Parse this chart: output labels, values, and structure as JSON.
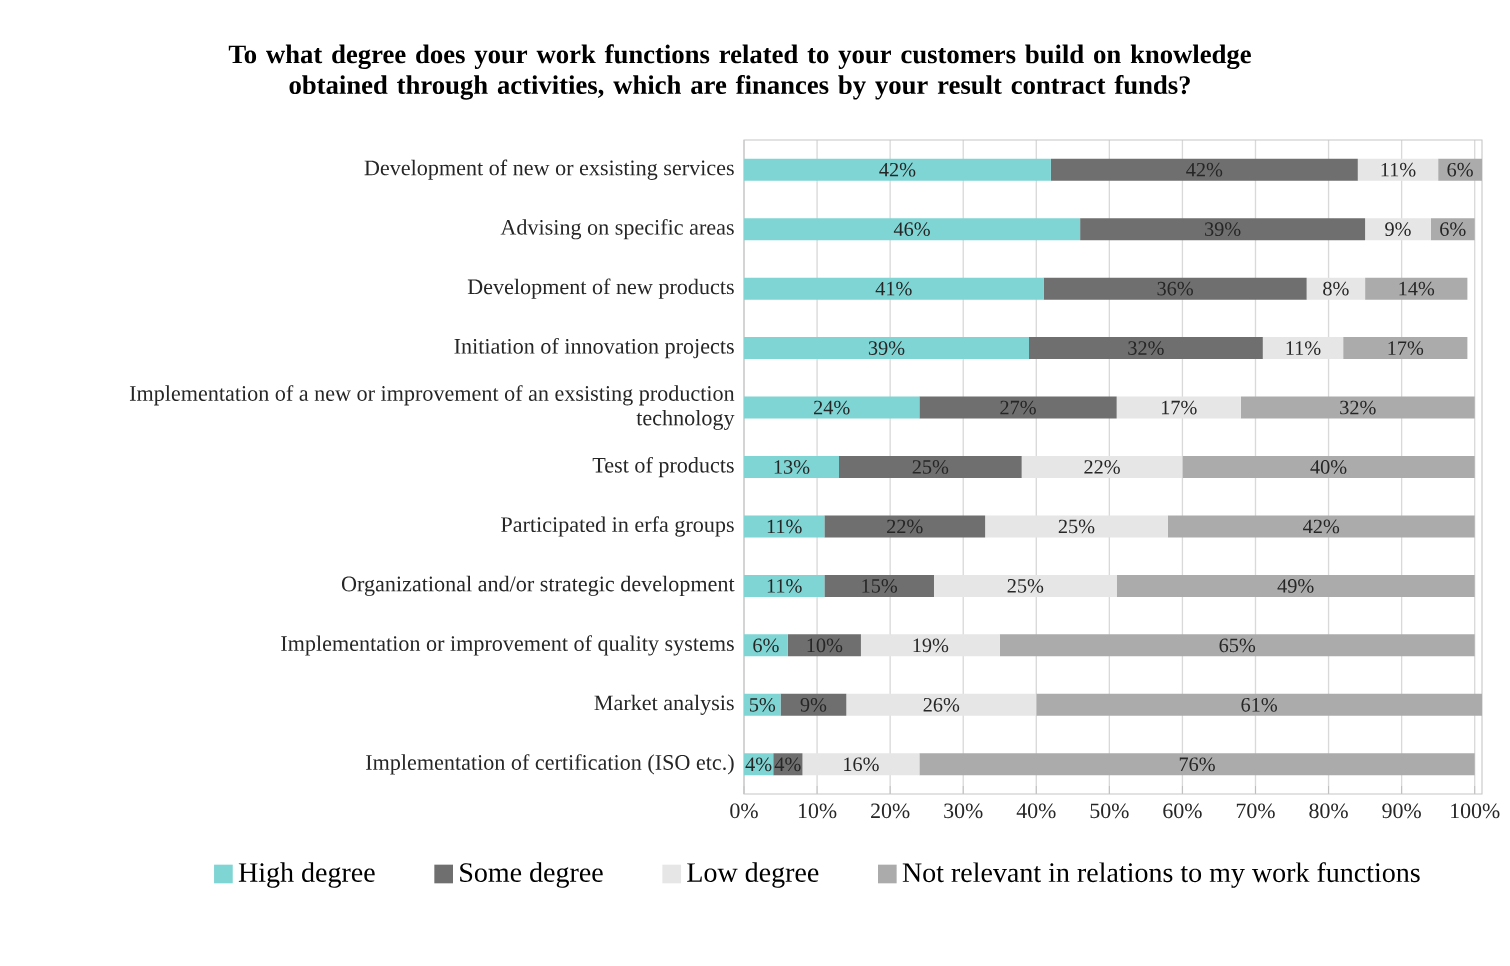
{
  "chart_data": {
    "type": "bar",
    "orientation": "horizontal",
    "stacked": true,
    "title": "To what degree does your work functions related to your customers build on knowledge obtained through activities, which are finances by your result contract funds?",
    "categories": [
      "Development of new or exsisting services",
      "Advising on specific areas",
      "Development of new products",
      "Initiation of innovation projects",
      "Implementation of a new or improvement of an exsisting production technology",
      "Test of products",
      "Participated in erfa groups",
      "Organizational and/or strategic development",
      "Implementation or improvement of quality systems",
      "Market analysis",
      "Implementation of certification (ISO etc.)"
    ],
    "series": [
      {
        "name": "High degree",
        "color": "#7fd4d4",
        "values": [
          42,
          46,
          41,
          39,
          24,
          13,
          11,
          11,
          6,
          5,
          4
        ],
        "value_labels": [
          "42%",
          "46%",
          "41%",
          "39%",
          "24%",
          "13%",
          "11%",
          "11%",
          "6%",
          "5%",
          "4%"
        ]
      },
      {
        "name": "Some degree",
        "color": "#6f6f6f",
        "values": [
          42,
          39,
          36,
          32,
          27,
          25,
          22,
          15,
          10,
          9,
          4
        ],
        "value_labels": [
          "42%",
          "39%",
          "36%",
          "32%",
          "27%",
          "25%",
          "22%",
          "15%",
          "10%",
          "9%",
          "4%"
        ]
      },
      {
        "name": "Low degree",
        "color": "#e6e6e6",
        "values": [
          11,
          9,
          8,
          11,
          17,
          22,
          25,
          25,
          19,
          26,
          16
        ],
        "value_labels": [
          "11%",
          "9%",
          "8%",
          "11%",
          "17%",
          "22%",
          "25%",
          "25%",
          "19%",
          "26%",
          "16%"
        ]
      },
      {
        "name": "Not relevant in relations to my work functions",
        "color": "#ababab",
        "values": [
          6,
          6,
          14,
          17,
          32,
          40,
          42,
          49,
          65,
          61,
          76
        ],
        "value_labels": [
          "6%",
          "6%",
          "14%",
          "17%",
          "32%",
          "40%",
          "42%",
          "49%",
          "65%",
          "61%",
          "76%"
        ]
      }
    ],
    "xlim": [
      0,
      101
    ],
    "xticks": [
      {
        "value": 0,
        "label": "0%"
      },
      {
        "value": 10,
        "label": "10%"
      },
      {
        "value": 20,
        "label": "20%"
      },
      {
        "value": 30,
        "label": "30%"
      },
      {
        "value": 40,
        "label": "40%"
      },
      {
        "value": 50,
        "label": "50%"
      },
      {
        "value": 60,
        "label": "60%"
      },
      {
        "value": 70,
        "label": "70%"
      },
      {
        "value": 80,
        "label": "80%"
      },
      {
        "value": 90,
        "label": "90%"
      },
      {
        "value": 100,
        "label": "100%"
      }
    ],
    "grid": "x",
    "legend": "bottom"
  }
}
